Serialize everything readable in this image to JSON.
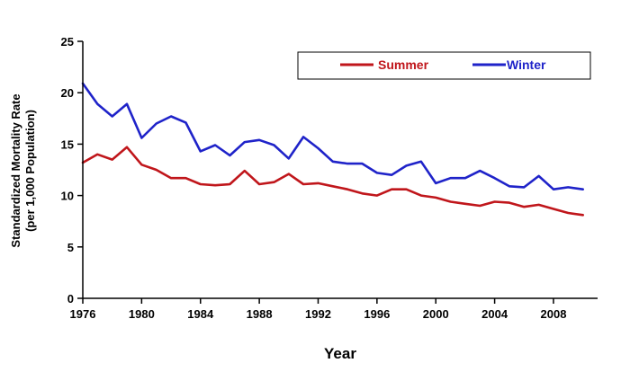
{
  "chart_data": {
    "type": "line",
    "title": "",
    "xlabel": "Year",
    "ylabel_line1": "Standardized Mortality Rate",
    "ylabel_line2": "(per 1,000 Population)",
    "xlim": [
      1976,
      2011
    ],
    "ylim": [
      0,
      25
    ],
    "x_ticks": [
      1976,
      1980,
      1984,
      1988,
      1992,
      1996,
      2000,
      2004,
      2008
    ],
    "y_ticks": [
      0,
      5,
      10,
      15,
      20,
      25
    ],
    "grid": false,
    "legend_position": "top-right",
    "x": [
      1976,
      1977,
      1978,
      1979,
      1980,
      1981,
      1982,
      1983,
      1984,
      1985,
      1986,
      1987,
      1988,
      1989,
      1990,
      1991,
      1992,
      1993,
      1994,
      1995,
      1996,
      1997,
      1998,
      1999,
      2000,
      2001,
      2002,
      2003,
      2004,
      2005,
      2006,
      2007,
      2008,
      2009,
      2010
    ],
    "series": [
      {
        "name": "Summer",
        "color": "#c0161b",
        "values": [
          13.2,
          14.0,
          13.5,
          14.7,
          13.0,
          12.5,
          11.7,
          11.7,
          11.1,
          11.0,
          11.1,
          12.4,
          11.1,
          11.3,
          12.1,
          11.1,
          11.2,
          10.9,
          10.6,
          10.2,
          10.0,
          10.6,
          10.6,
          10.0,
          9.8,
          9.4,
          9.2,
          9.0,
          9.4,
          9.3,
          8.9,
          9.1,
          8.7,
          8.3,
          8.1
        ]
      },
      {
        "name": "Winter",
        "color": "#1f23c9",
        "values": [
          20.9,
          18.9,
          17.7,
          18.9,
          15.6,
          17.0,
          17.7,
          17.1,
          14.3,
          14.9,
          13.9,
          15.2,
          15.4,
          14.9,
          13.6,
          15.7,
          14.6,
          13.3,
          13.1,
          13.1,
          12.2,
          12.0,
          12.9,
          13.3,
          11.2,
          11.7,
          11.7,
          12.4,
          11.7,
          10.9,
          10.8,
          11.9,
          10.6,
          10.8,
          10.6
        ]
      }
    ]
  }
}
